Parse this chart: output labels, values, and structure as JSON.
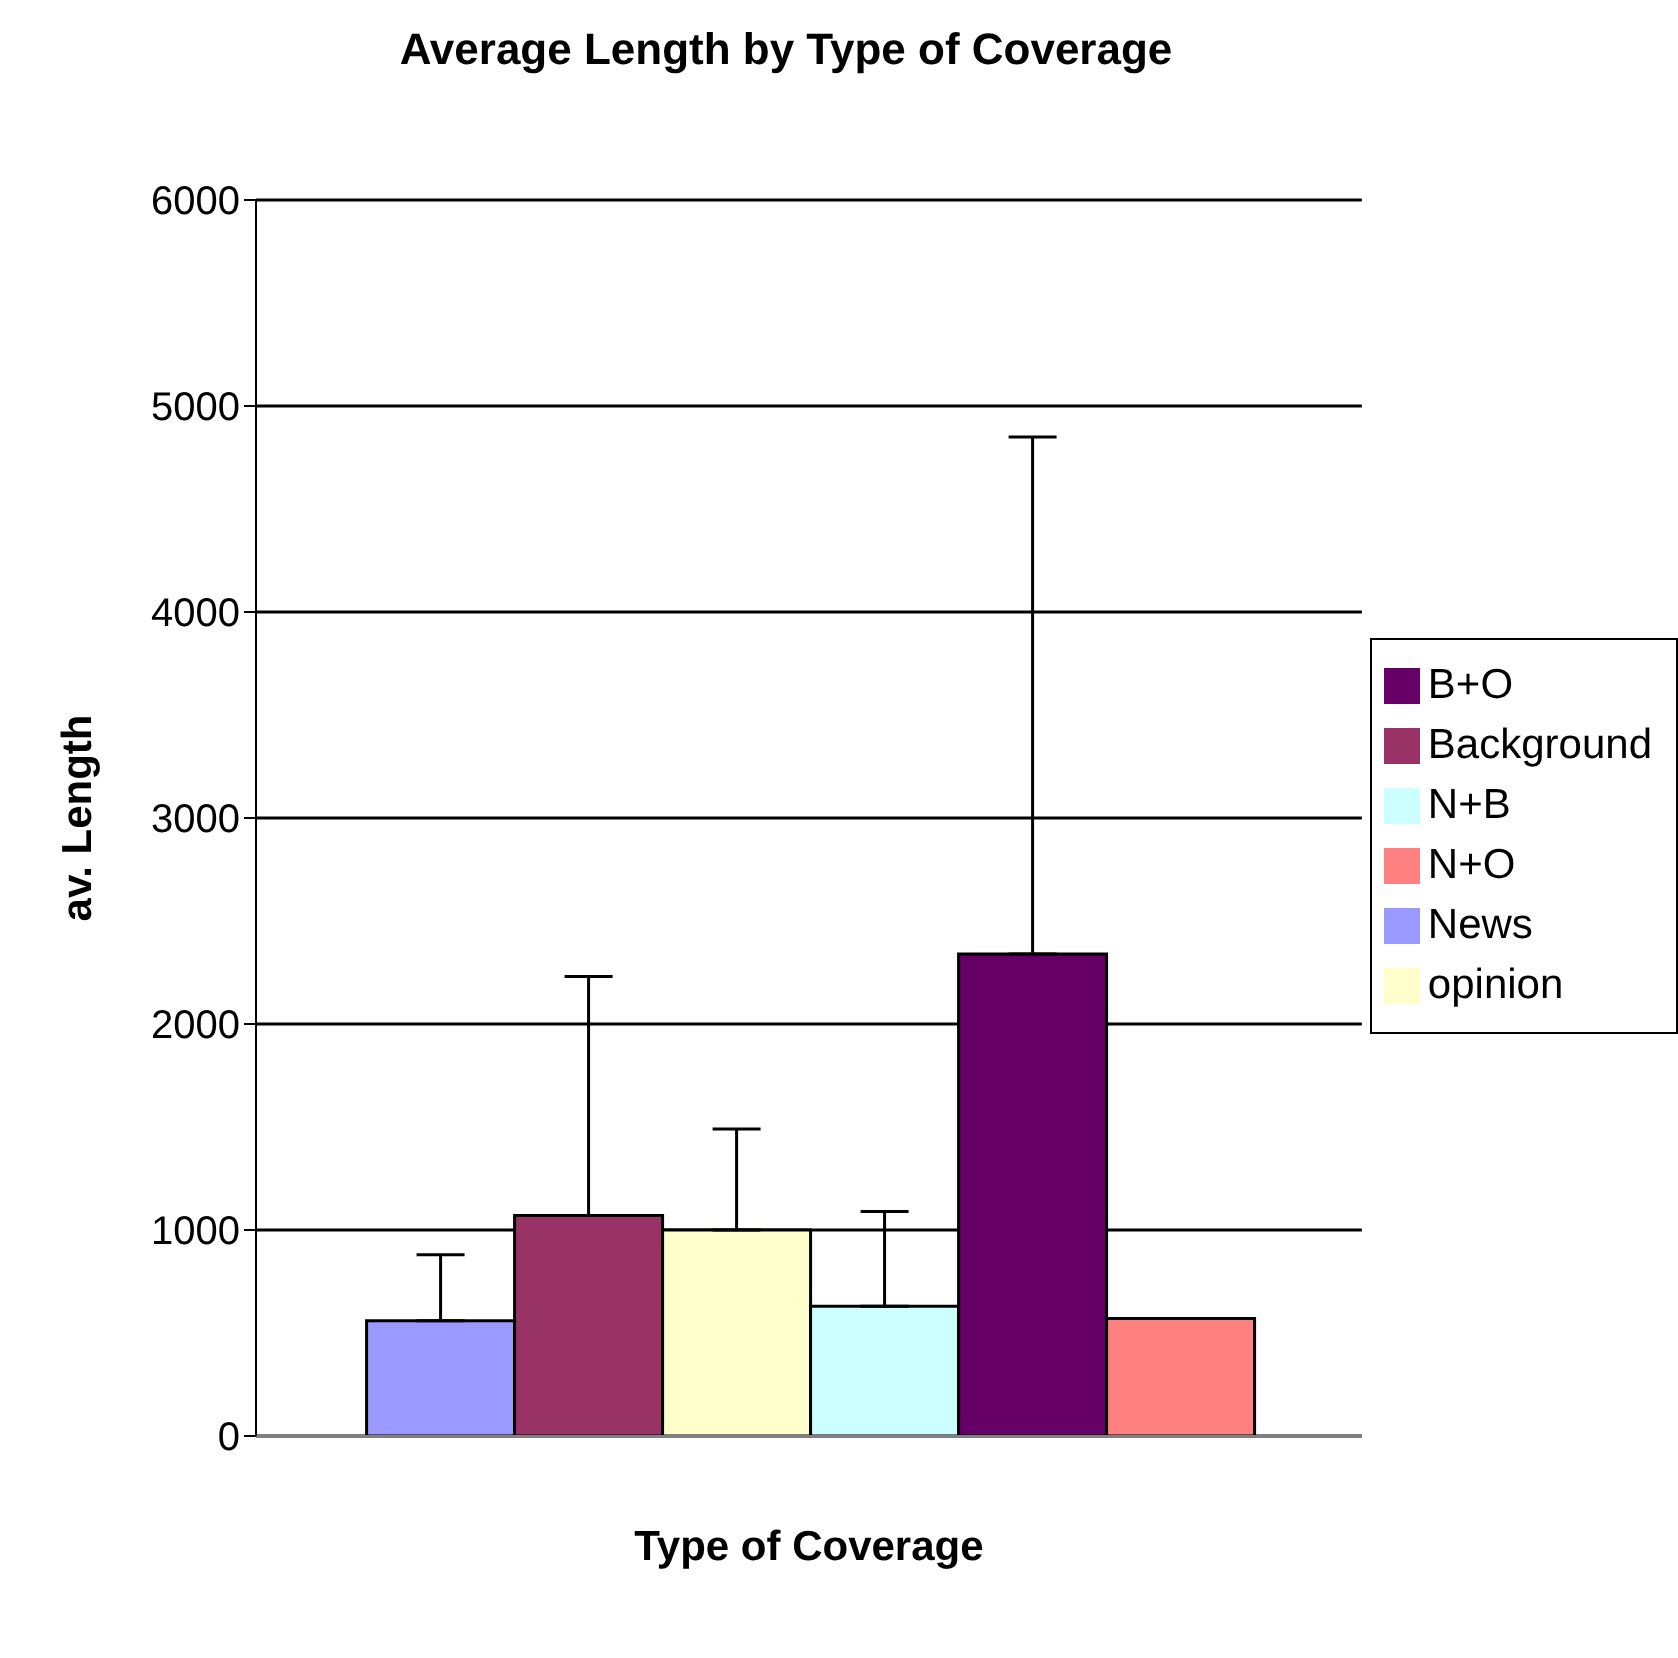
{
  "chart_data": {
    "type": "bar",
    "title": "Average Length by Type of Coverage",
    "xlabel": "Type of Coverage",
    "ylabel": "av. Length",
    "categories": [
      null
    ],
    "series": [
      {
        "name": "News",
        "color": "#9999ff",
        "values": [
          560
        ],
        "errors": [
          [
            560,
            880
          ]
        ]
      },
      {
        "name": "Background",
        "color": "#993366",
        "values": [
          1070
        ],
        "errors": [
          [
            1070,
            2230
          ]
        ]
      },
      {
        "name": "opinion",
        "color": "#ffffcc",
        "values": [
          1000
        ],
        "errors": [
          [
            1000,
            1490
          ]
        ]
      },
      {
        "name": "N+B",
        "color": "#ccffff",
        "values": [
          630
        ],
        "errors": [
          [
            630,
            1090
          ]
        ]
      },
      {
        "name": "B+O",
        "color": "#660066",
        "values": [
          2340
        ],
        "errors": [
          [
            2340,
            4850
          ]
        ]
      },
      {
        "name": "N+O",
        "color": "#ff8080",
        "values": [
          570
        ],
        "errors": [
          null
        ]
      }
    ],
    "ylim": [
      0,
      6000
    ],
    "yticks": [
      0,
      1000,
      2000,
      3000,
      4000,
      5000,
      6000
    ],
    "grid": "y",
    "legend": "right"
  }
}
